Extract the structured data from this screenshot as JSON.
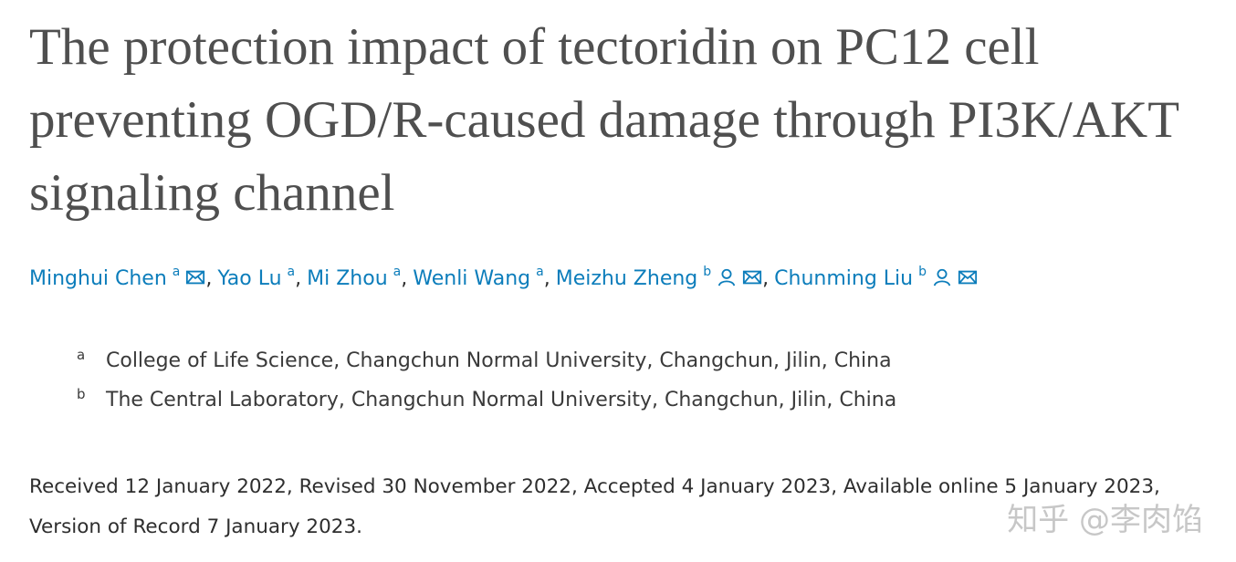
{
  "title": "The protection impact of tectoridin on PC12 cell preventing OGD/R-caused damage through PI3K/AKT signaling channel",
  "authors": [
    {
      "name": "Minghui Chen",
      "affiliation": "a",
      "person_icon": false,
      "mail_icon": true,
      "separator": ","
    },
    {
      "name": "Yao Lu",
      "affiliation": "a",
      "person_icon": false,
      "mail_icon": false,
      "separator": ","
    },
    {
      "name": "Mi Zhou",
      "affiliation": "a",
      "person_icon": false,
      "mail_icon": false,
      "separator": ","
    },
    {
      "name": "Wenli Wang",
      "affiliation": "a",
      "person_icon": false,
      "mail_icon": false,
      "separator": ","
    },
    {
      "name": "Meizhu Zheng",
      "affiliation": "b",
      "person_icon": true,
      "mail_icon": true,
      "separator": ","
    },
    {
      "name": "Chunming Liu",
      "affiliation": "b",
      "person_icon": true,
      "mail_icon": true
    }
  ],
  "affiliations": [
    {
      "label": "a",
      "text": "College of Life Science, Changchun Normal University, Changchun, Jilin, China"
    },
    {
      "label": "b",
      "text": "The Central Laboratory, Changchun Normal University, Changchun, Jilin, China"
    }
  ],
  "history": "Received 12 January 2022, Revised 30 November 2022, Accepted 4 January 2023, Available online 5 January 2023, Version of Record 7 January 2023.",
  "watermark": "知乎 @李肉馅"
}
